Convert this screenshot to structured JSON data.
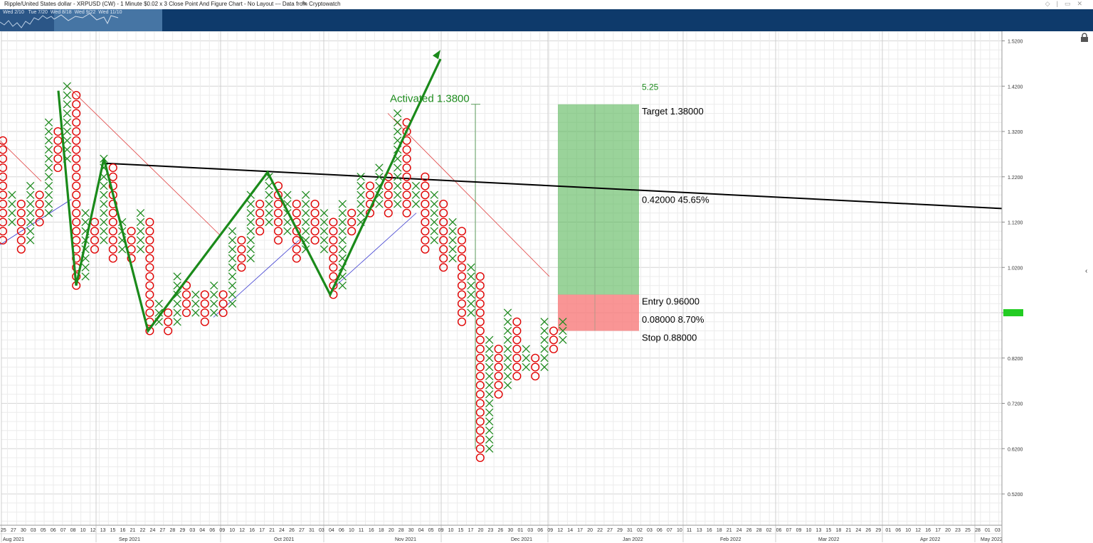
{
  "header": {
    "title": "Ripple/United States dollar - XRPUSD (CW) - 1 Minute $0.02 x 3 Close Point And Figure Chart - No Layout --- Data from Cryptowatch",
    "edit_icon": "pencil-icon",
    "window_icons": [
      "diamond-icon",
      "divider-icon",
      "restore-icon",
      "close-icon"
    ]
  },
  "navigator": {
    "labels": [
      "Wed 2/10",
      "Tue 7/20",
      "Wed 8/18",
      "Wed 9/22",
      "Wed 11/10"
    ]
  },
  "colors": {
    "x_mark": "#1e8a1e",
    "o_mark": "#e00000",
    "pattern_line": "#1a8a1a",
    "trend_line": "#000000",
    "resistance_line": "#e04040",
    "support_line": "#3a3ad0",
    "target_zone": "#5cb85c",
    "stop_zone": "#f77b7b",
    "price_marker": "#22cc22",
    "nav_bar": "#0e3a6b"
  },
  "chart_data": {
    "type": "point-and-figure",
    "box_size": 0.02,
    "reversal": 3,
    "ylim": [
      0.46,
      1.54
    ],
    "y_ticks": [
      "1.5200",
      "1.4200",
      "1.3200",
      "1.2200",
      "1.1200",
      "1.0200",
      "0.9200",
      "0.8200",
      "0.7200",
      "0.6200",
      "0.5200"
    ],
    "columns": [
      {
        "type": "O",
        "top": 1.3,
        "bottom": 1.08
      },
      {
        "type": "X",
        "top": 1.18,
        "bottom": 1.12
      },
      {
        "type": "O",
        "top": 1.16,
        "bottom": 1.06
      },
      {
        "type": "X",
        "top": 1.2,
        "bottom": 1.08
      },
      {
        "type": "O",
        "top": 1.18,
        "bottom": 1.12
      },
      {
        "type": "X",
        "top": 1.34,
        "bottom": 1.14
      },
      {
        "type": "O",
        "top": 1.32,
        "bottom": 1.24
      },
      {
        "type": "X",
        "top": 1.42,
        "bottom": 1.26
      },
      {
        "type": "O",
        "top": 1.4,
        "bottom": 0.98
      },
      {
        "type": "X",
        "top": 1.14,
        "bottom": 1.0
      },
      {
        "type": "O",
        "top": 1.12,
        "bottom": 1.06
      },
      {
        "type": "X",
        "top": 1.26,
        "bottom": 1.08
      },
      {
        "type": "O",
        "top": 1.24,
        "bottom": 1.04
      },
      {
        "type": "X",
        "top": 1.12,
        "bottom": 1.06
      },
      {
        "type": "O",
        "top": 1.1,
        "bottom": 1.04
      },
      {
        "type": "X",
        "top": 1.14,
        "bottom": 1.06
      },
      {
        "type": "O",
        "top": 1.12,
        "bottom": 0.88
      },
      {
        "type": "X",
        "top": 0.94,
        "bottom": 0.9
      },
      {
        "type": "O",
        "top": 0.92,
        "bottom": 0.88
      },
      {
        "type": "X",
        "top": 1.0,
        "bottom": 0.9
      },
      {
        "type": "O",
        "top": 0.98,
        "bottom": 0.92
      },
      {
        "type": "X",
        "top": 0.96,
        "bottom": 0.92
      },
      {
        "type": "O",
        "top": 0.96,
        "bottom": 0.9
      },
      {
        "type": "X",
        "top": 0.98,
        "bottom": 0.92
      },
      {
        "type": "O",
        "top": 0.96,
        "bottom": 0.92
      },
      {
        "type": "X",
        "top": 1.1,
        "bottom": 0.94
      },
      {
        "type": "O",
        "top": 1.08,
        "bottom": 1.02
      },
      {
        "type": "X",
        "top": 1.18,
        "bottom": 1.04
      },
      {
        "type": "O",
        "top": 1.16,
        "bottom": 1.1
      },
      {
        "type": "X",
        "top": 1.22,
        "bottom": 1.12
      },
      {
        "type": "O",
        "top": 1.2,
        "bottom": 1.08
      },
      {
        "type": "X",
        "top": 1.18,
        "bottom": 1.1
      },
      {
        "type": "O",
        "top": 1.16,
        "bottom": 1.04
      },
      {
        "type": "X",
        "top": 1.18,
        "bottom": 1.06
      },
      {
        "type": "O",
        "top": 1.16,
        "bottom": 1.08
      },
      {
        "type": "X",
        "top": 1.14,
        "bottom": 1.06
      },
      {
        "type": "O",
        "top": 1.12,
        "bottom": 0.96
      },
      {
        "type": "X",
        "top": 1.16,
        "bottom": 0.98
      },
      {
        "type": "O",
        "top": 1.14,
        "bottom": 1.1
      },
      {
        "type": "X",
        "top": 1.22,
        "bottom": 1.12
      },
      {
        "type": "O",
        "top": 1.2,
        "bottom": 1.14
      },
      {
        "type": "X",
        "top": 1.24,
        "bottom": 1.16
      },
      {
        "type": "O",
        "top": 1.22,
        "bottom": 1.14
      },
      {
        "type": "X",
        "top": 1.36,
        "bottom": 1.16
      },
      {
        "type": "O",
        "top": 1.34,
        "bottom": 1.14
      },
      {
        "type": "X",
        "top": 1.2,
        "bottom": 1.16
      },
      {
        "type": "O",
        "top": 1.22,
        "bottom": 1.06
      },
      {
        "type": "X",
        "top": 1.18,
        "bottom": 1.08
      },
      {
        "type": "O",
        "top": 1.16,
        "bottom": 1.02
      },
      {
        "type": "X",
        "top": 1.12,
        "bottom": 1.04
      },
      {
        "type": "O",
        "top": 1.1,
        "bottom": 0.9
      },
      {
        "type": "X",
        "top": 1.02,
        "bottom": 0.92
      },
      {
        "type": "O",
        "top": 1.0,
        "bottom": 0.6
      },
      {
        "type": "X",
        "top": 0.86,
        "bottom": 0.62
      },
      {
        "type": "O",
        "top": 0.84,
        "bottom": 0.74
      },
      {
        "type": "X",
        "top": 0.92,
        "bottom": 0.76
      },
      {
        "type": "O",
        "top": 0.9,
        "bottom": 0.78
      },
      {
        "type": "X",
        "top": 0.84,
        "bottom": 0.8
      },
      {
        "type": "O",
        "top": 0.82,
        "bottom": 0.78
      },
      {
        "type": "X",
        "top": 0.9,
        "bottom": 0.8
      },
      {
        "type": "O",
        "top": 0.88,
        "bottom": 0.84
      },
      {
        "type": "X",
        "top": 0.9,
        "bottom": 0.86
      }
    ],
    "trade_box": {
      "target": 1.38,
      "entry": 0.96,
      "stop": 0.88,
      "reward_label": "0.42000  45.65%",
      "risk_label": "0.08000  8.70%",
      "ratio_label": "5.25",
      "target_label": "Target  1.38000",
      "entry_label": "Entry  0.96000",
      "stop_label": "Stop  0.88000"
    },
    "activated_label": "Activated 1.3800",
    "current_price": "0.9200",
    "x_ticks": [
      "25",
      "27",
      "30",
      "03",
      "05",
      "06",
      "07",
      "08",
      "10",
      "12",
      "13",
      "15",
      "16",
      "21",
      "22",
      "24",
      "27",
      "28",
      "29",
      "03",
      "04",
      "06",
      "09",
      "10",
      "12",
      "16",
      "17",
      "21",
      "24",
      "26",
      "27",
      "31",
      "03",
      "04",
      "06",
      "10",
      "11",
      "16",
      "18",
      "20",
      "28",
      "30",
      "04",
      "05",
      "09",
      "10",
      "15",
      "17",
      "20",
      "23",
      "26",
      "30",
      "01",
      "03",
      "06",
      "09",
      "12",
      "14",
      "17",
      "20",
      "22",
      "27",
      "29",
      "31",
      "02",
      "03",
      "06",
      "07",
      "10",
      "11",
      "13",
      "16",
      "18",
      "21",
      "24",
      "26",
      "28",
      "02",
      "06",
      "07",
      "09",
      "10",
      "13",
      "15",
      "18",
      "21",
      "24",
      "26",
      "29",
      "01",
      "06",
      "10",
      "12",
      "16",
      "17",
      "20",
      "23",
      "25",
      "28",
      "01",
      "03"
    ],
    "month_labels": [
      "Aug 2021",
      "Sep 2021",
      "Oct 2021",
      "Nov 2021",
      "Dec 2021",
      "Jan 2022",
      "Feb 2022",
      "Mar 2022",
      "Apr 2022",
      "May 2022"
    ]
  }
}
